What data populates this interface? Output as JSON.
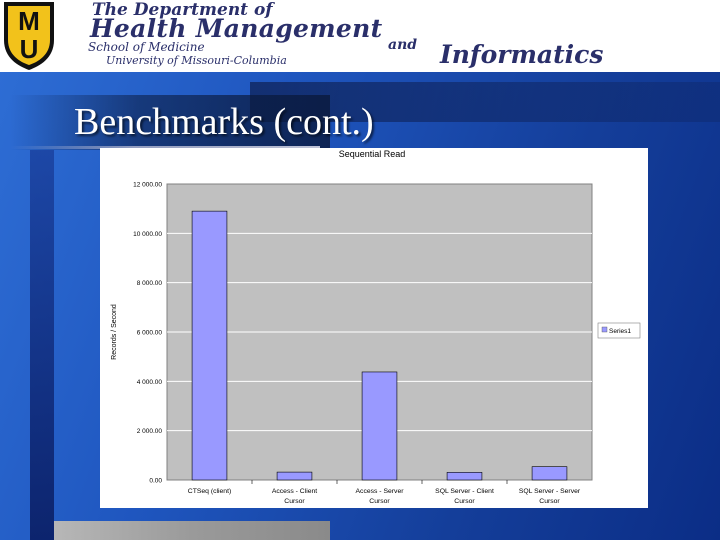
{
  "banner": {
    "line1": "The Department of",
    "line2": "Health Management",
    "line3": "School of Medicine",
    "and": "and",
    "line4": "University of Missouri-Columbia",
    "informatics": "Informatics",
    "logo_text": "MU"
  },
  "slide": {
    "title": "Benchmarks (cont.)"
  },
  "colors": {
    "bar": "#9999ff",
    "plot_bg": "#c0c0c0",
    "background": "#1f56bf"
  },
  "chart_data": {
    "type": "bar",
    "title": "Sequential Read",
    "ylabel": "Records / Second",
    "xlabel": "",
    "categories": [
      [
        "CTSeq (client)"
      ],
      [
        "Access - Client",
        "Cursor"
      ],
      [
        "Access - Server",
        "Cursor"
      ],
      [
        "SQL Server - Client",
        "Cursor"
      ],
      [
        "SQL Server - Server",
        "Cursor"
      ]
    ],
    "series": [
      {
        "name": "Series1",
        "values": [
          10900,
          320,
          4380,
          310,
          540
        ]
      }
    ],
    "ylim": [
      0,
      12000
    ],
    "yticks": [
      0,
      2000,
      4000,
      6000,
      8000,
      10000,
      12000
    ],
    "ytick_labels": [
      "0.00",
      "2 000.00",
      "4 000.00",
      "6 000.00",
      "8 000.00",
      "10 000.00",
      "12 000.00"
    ],
    "grid": true,
    "legend": "right"
  }
}
